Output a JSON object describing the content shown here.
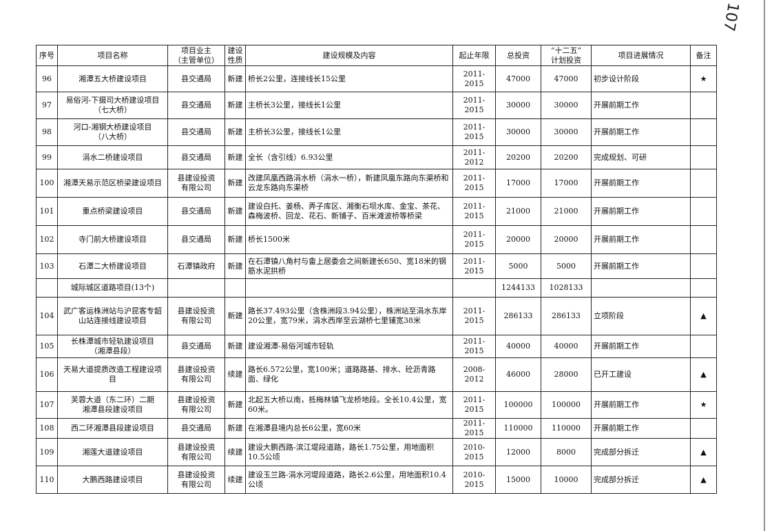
{
  "handwritten_mark": "107",
  "headers": [
    "序号",
    "项目名称",
    "项目业主\n（主管单位）",
    "建设\n性质",
    "建设规模及内容",
    "起止年限",
    "总投资",
    "“十二五”\n计划投资",
    "项目进展情况",
    "备注"
  ],
  "rows": [
    {
      "no": "96",
      "name": "湘潭五大桥建设项目",
      "owner": "县交通局",
      "type": "新建",
      "content": "桥长2公里，连接线长15公里",
      "years": "2011-2015",
      "total": "47000",
      "plan": "47000",
      "progress": "初步设计阶段",
      "note": "★"
    },
    {
      "no": "97",
      "name": "易俗河-下摄司大桥建设项目\n（七大桥）",
      "owner": "县交通局",
      "type": "新建",
      "content": "主桥长3公里，接线长1公里",
      "years": "2011-2015",
      "total": "30000",
      "plan": "30000",
      "progress": "开展前期工作",
      "note": ""
    },
    {
      "no": "98",
      "name": "河口-湘钢大桥建设项目\n（八大桥）",
      "owner": "县交通局",
      "type": "新建",
      "content": "主桥长3公里，接线长1公里",
      "years": "2011-2015",
      "total": "30000",
      "plan": "30000",
      "progress": "开展前期工作",
      "note": ""
    },
    {
      "no": "99",
      "name": "涓水二桥建设项目",
      "owner": "县交通局",
      "type": "新建",
      "content": "全长（含引线）6.93公里",
      "years": "2011-2012",
      "total": "20200",
      "plan": "20200",
      "progress": "完成规划、可研",
      "note": ""
    },
    {
      "no": "100",
      "name": "湘潭天易示范区桥梁建设项目",
      "owner": "县建设投资\n有限公司",
      "type": "新建",
      "content": "改建凤凰西路涓水桥（涓水一桥），新建凤凰东路向东渠桥和云龙东路向东渠桥",
      "years": "2011-2015",
      "total": "17000",
      "plan": "17000",
      "progress": "开展前期工作",
      "note": ""
    },
    {
      "no": "101",
      "name": "重点桥梁建设项目",
      "owner": "县交通局",
      "type": "新建",
      "content": "建设白托、姜杨、弄子库区、湘衡石坝水库、金宝、茶花、森梅波桥、回龙、花石、新铺子、百米滩波桥等桥梁",
      "years": "2011-2015",
      "total": "21000",
      "plan": "21000",
      "progress": "开展前期工作",
      "note": ""
    },
    {
      "no": "102",
      "name": "寺门前大桥建设项目",
      "owner": "县交通局",
      "type": "新建",
      "content": "桥长1500米",
      "years": "2011-2015",
      "total": "20000",
      "plan": "20000",
      "progress": "开展前期工作",
      "note": ""
    },
    {
      "no": "103",
      "name": "石潭二大桥建设项目",
      "owner": "石潭镇政府",
      "type": "新建",
      "content": "在石潭镇八角村与畬上居委会之间新建长650、宽18米的钢筋水泥拱桥",
      "years": "2011-2015",
      "total": "5000",
      "plan": "5000",
      "progress": "开展前期工作",
      "note": ""
    },
    {
      "no": "",
      "name": "城际城区道路项目(13个)",
      "owner": "",
      "type": "",
      "content": "",
      "years": "",
      "total": "1244133",
      "plan": "1028133",
      "progress": "",
      "note": ""
    },
    {
      "no": "104",
      "name": "武广客运株洲站与沪昆客专韶山站连接线建设项目",
      "owner": "县建设投资\n有限公司",
      "type": "新建",
      "content": "路长37.493公里（含株洲段3.94公里），株洲站至涓水东岸20公里，宽79米，涓水西岸至云湖桥七里铺宽38米",
      "years": "2011-2015",
      "total": "286133",
      "plan": "286133",
      "progress": "立项阶段",
      "note": "▲"
    },
    {
      "no": "105",
      "name": "长株潭城市轻轨建设项目\n（湘潭县段）",
      "owner": "县交通局",
      "type": "新建",
      "content": "建设湘潭-易俗河城市轻轨",
      "years": "2011-2015",
      "total": "40000",
      "plan": "40000",
      "progress": "开展前期工作",
      "note": ""
    },
    {
      "no": "106",
      "name": "天易大道提质改造工程建设项目",
      "owner": "县建设投资\n有限公司",
      "type": "续建",
      "content": "路长6.572公里，宽100米；道路路基、排水、砼沥青路面、绿化",
      "years": "2008-2012",
      "total": "46000",
      "plan": "28000",
      "progress": "已开工建设",
      "note": "▲"
    },
    {
      "no": "107",
      "name": "芙蓉大道（东二环）二期\n湘潭县段建设项目",
      "owner": "县建设投资\n有限公司",
      "type": "新建",
      "content": "北起五大桥以南，抵梅林镇飞龙桥地段。全长10.4公里，宽60米。",
      "years": "2011-2015",
      "total": "100000",
      "plan": "100000",
      "progress": "开展前期工作",
      "note": "★"
    },
    {
      "no": "108",
      "name": "西二环湘潭县段建设项目",
      "owner": "县交通局",
      "type": "新建",
      "content": "在湘潭县境内总长6公里，宽60米",
      "years": "2011-2015",
      "total": "110000",
      "plan": "110000",
      "progress": "开展前期工作",
      "note": ""
    },
    {
      "no": "109",
      "name": "湘莲大道建设项目",
      "owner": "县建设投资\n有限公司",
      "type": "续建",
      "content": "建设大鹏西路-滨江堤段道路，路长1.75公里，用地面积10.5公顷",
      "years": "2010-2015",
      "total": "12000",
      "plan": "8000",
      "progress": "完成部分拆迁",
      "note": "▲"
    },
    {
      "no": "110",
      "name": "大鹏西路建设项目",
      "owner": "县建设投资\n有限公司",
      "type": "续建",
      "content": "建设玉兰路-涓水河堤段道路，路长2.6公里，用地面积10.4公顷",
      "years": "2010-2015",
      "total": "15000",
      "plan": "10000",
      "progress": "完成部分拆迁",
      "note": "▲"
    }
  ]
}
